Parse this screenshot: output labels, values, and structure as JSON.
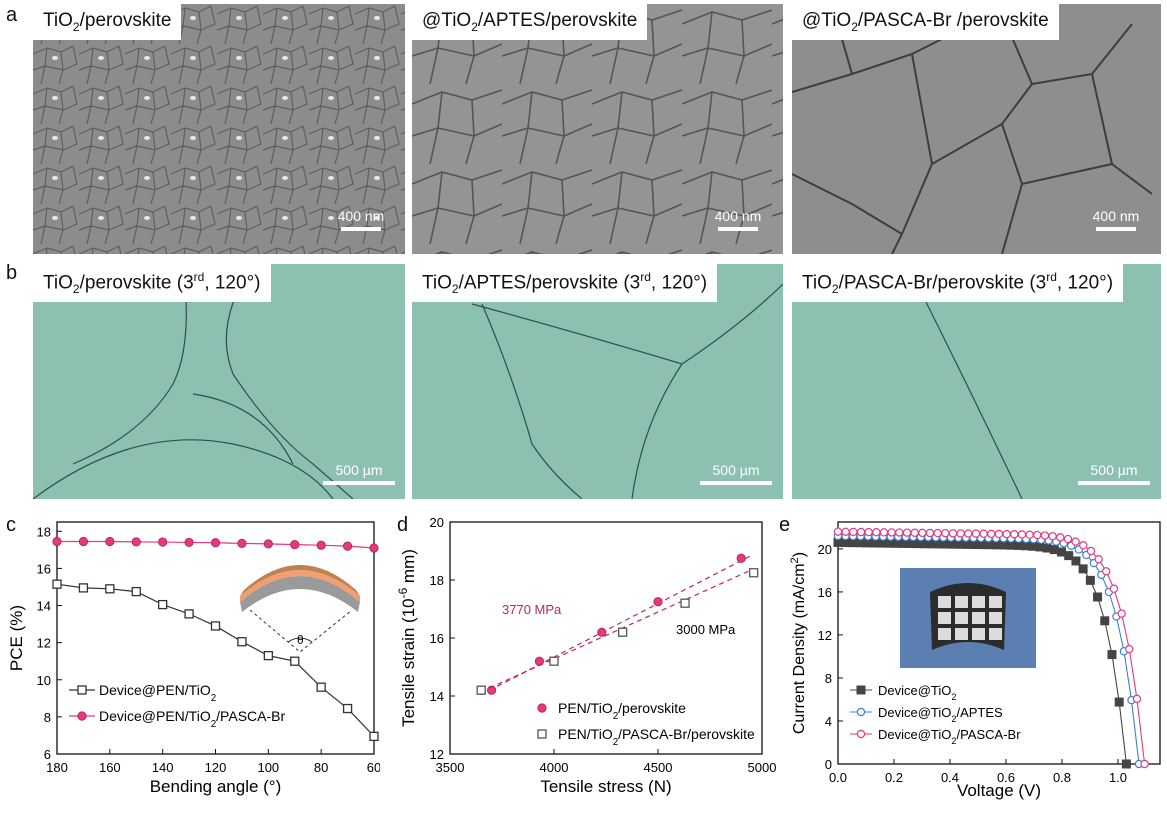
{
  "panel_labels": {
    "a": "a",
    "b": "b",
    "c": "c",
    "d": "d",
    "e": "e"
  },
  "row_a": [
    {
      "tag_main": "TiO",
      "tag_sub": "2",
      "tag_rest": "/perovskite",
      "tag_prefix": "",
      "scale": "400 nm"
    },
    {
      "tag_main": "TiO",
      "tag_sub": "2",
      "tag_rest": "/APTES/perovskite",
      "tag_prefix": "@",
      "scale": "400 nm"
    },
    {
      "tag_main": "TiO",
      "tag_sub": "2",
      "tag_rest": "/PASCA-Br /perovskite",
      "tag_prefix": "@",
      "scale": "400 nm"
    }
  ],
  "row_b": [
    {
      "tag_main": "TiO",
      "tag_sub": "2",
      "tag_mid": "/perovskite (3",
      "tag_sup": "rd",
      "tag_end": ", 120°)",
      "scale": "500 µm"
    },
    {
      "tag_main": "TiO",
      "tag_sub": "2",
      "tag_mid": "/APTES/perovskite (3",
      "tag_sup": "rd",
      "tag_end": ", 120°)",
      "scale": "500 µm"
    },
    {
      "tag_main": "TiO",
      "tag_sub": "2",
      "tag_mid": "/PASCA-Br/perovskite (3",
      "tag_sup": "rd",
      "tag_end": ", 120°)",
      "scale": "500 µm"
    }
  ],
  "chart_data": [
    {
      "type": "line",
      "panel": "c",
      "xlabel": "Bending angle (°)",
      "ylabel": "PCE (%)",
      "xlim": [
        180,
        60
      ],
      "ylim": [
        6,
        18.5
      ],
      "xticks": [
        180,
        160,
        140,
        120,
        100,
        80,
        60
      ],
      "yticks": [
        6,
        8,
        10,
        12,
        14,
        16,
        18
      ],
      "x": [
        180,
        170,
        160,
        150,
        140,
        130,
        120,
        110,
        100,
        90,
        80,
        70,
        60
      ],
      "series": [
        {
          "name": "Device@PEN/TiO2",
          "legend_main": "Device@PEN/TiO",
          "legend_sub": "2",
          "legend_rest": "",
          "color": "#333333",
          "marker": "open-square",
          "values": [
            15.15,
            14.95,
            14.9,
            14.75,
            14.05,
            13.55,
            12.9,
            12.05,
            11.3,
            11.0,
            9.6,
            8.45,
            6.95
          ]
        },
        {
          "name": "Device@PEN/TiO2/PASCA-Br",
          "legend_main": "Device@PEN/TiO",
          "legend_sub": "2",
          "legend_rest": "/PASCA-Br",
          "color": "#e23a7c",
          "marker": "filled-circle",
          "values": [
            17.45,
            17.45,
            17.45,
            17.43,
            17.42,
            17.4,
            17.38,
            17.35,
            17.32,
            17.28,
            17.25,
            17.2,
            17.1
          ]
        }
      ],
      "inset_label": "θ"
    },
    {
      "type": "scatter",
      "panel": "d",
      "xlabel": "Tensile stress (N)",
      "ylabel_main": "Tensile strain (10",
      "ylabel_sup": "-6",
      "ylabel_end": " mm)",
      "xlim": [
        3500,
        5000
      ],
      "ylim": [
        12,
        20
      ],
      "xticks": [
        3500,
        4000,
        4500,
        5000
      ],
      "yticks": [
        12,
        14,
        16,
        18,
        20
      ],
      "series": [
        {
          "name": "PEN/TiO2/perovskite",
          "legend_main": "PEN/TiO",
          "legend_sub": "2",
          "legend_rest": "/perovskite",
          "color": "#e23a7c",
          "marker": "filled-circle",
          "x": [
            3650,
            3700,
            3930,
            4230,
            4500,
            4900
          ],
          "values": [
            14.2,
            14.2,
            15.2,
            16.2,
            17.25,
            18.75
          ],
          "fit": [
            [
              3650,
              14.05
            ],
            [
              4950,
              18.85
            ]
          ],
          "annotation": "3770 MPa"
        },
        {
          "name": "PEN/TiO2/PASCA-Br/perovskite",
          "legend_main": "PEN/TiO",
          "legend_sub": "2",
          "legend_rest": "/PASCA-Br/perovskite",
          "color": "#555555",
          "marker": "open-square",
          "x": [
            3650,
            4000,
            4330,
            4630,
            4960
          ],
          "values": [
            14.2,
            15.2,
            16.2,
            17.2,
            18.25
          ],
          "fit": [
            [
              3650,
              14.15
            ],
            [
              4950,
              18.35
            ]
          ],
          "annotation": "3000 MPa"
        }
      ]
    },
    {
      "type": "line",
      "panel": "e",
      "xlabel": "Voltage (V)",
      "ylabel_main": "Current Density (mA/cm",
      "ylabel_sup": "2",
      "ylabel_end": ")",
      "xlim": [
        0,
        1.15
      ],
      "ylim": [
        0,
        22.5
      ],
      "xticks": [
        0.0,
        0.2,
        0.4,
        0.6,
        0.8,
        1.0
      ],
      "yticks": [
        0,
        4,
        8,
        12,
        16,
        20
      ],
      "series": [
        {
          "name": "Device@TiO2",
          "legend_main": "Device@TiO",
          "legend_sub": "2",
          "legend_rest": "",
          "color": "#444444",
          "marker": "filled-square",
          "jsc": 20.6,
          "voc": 1.03
        },
        {
          "name": "Device@TiO2/APTES",
          "legend_main": "Device@TiO",
          "legend_sub": "2",
          "legend_rest": "/APTES",
          "color": "#3f7fd0",
          "marker": "open-circle",
          "jsc": 21.2,
          "voc": 1.075
        },
        {
          "name": "Device@TiO2/PASCA-Br",
          "legend_main": "Device@TiO",
          "legend_sub": "2",
          "legend_rest": "/PASCA-Br",
          "color": "#e23a7c",
          "marker": "open-circle",
          "jsc": 21.6,
          "voc": 1.095
        }
      ]
    }
  ]
}
